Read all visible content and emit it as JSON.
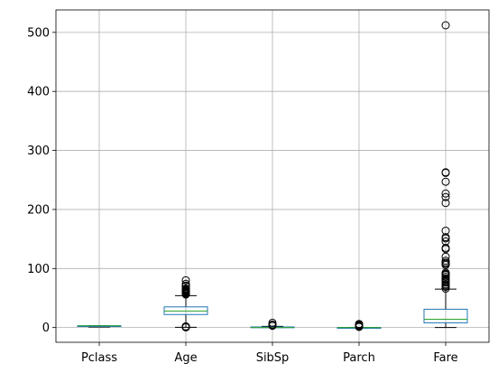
{
  "chart_data": {
    "type": "box",
    "categories": [
      "Pclass",
      "Age",
      "SibSp",
      "Parch",
      "Fare"
    ],
    "ylim": [
      -25,
      538
    ],
    "yticks": [
      0,
      100,
      200,
      300,
      400,
      500
    ],
    "ytick_labels": [
      "0",
      "100",
      "200",
      "300",
      "400",
      "500"
    ],
    "grid": true,
    "colors": {
      "box": "#1f77b4",
      "median": "#2ca02c",
      "whisker": "#000000",
      "flier": "#000000",
      "grid": "#b0b0b0"
    },
    "boxes": [
      {
        "name": "Pclass",
        "whisker_low": 1,
        "q1": 2,
        "median": 3,
        "q3": 3,
        "whisker_high": 3,
        "fliers": []
      },
      {
        "name": "Age",
        "whisker_low": 0.4,
        "q1": 22,
        "median": 28,
        "q3": 35,
        "whisker_high": 54,
        "fliers": [
          0.4,
          0.7,
          0.9,
          1,
          2,
          56,
          57,
          58,
          59,
          60,
          61,
          62,
          63,
          64,
          65,
          66,
          70,
          71,
          74,
          80
        ]
      },
      {
        "name": "SibSp",
        "whisker_low": 0,
        "q1": 0,
        "median": 0,
        "q3": 1,
        "whisker_high": 2,
        "fliers": [
          3,
          4,
          5,
          8
        ]
      },
      {
        "name": "Parch",
        "whisker_low": 0,
        "q1": 0,
        "median": 0,
        "q3": 0,
        "whisker_high": 0,
        "fliers": [
          1,
          2,
          3,
          4,
          5,
          6
        ]
      },
      {
        "name": "Fare",
        "whisker_low": 0,
        "q1": 8,
        "median": 14,
        "q3": 31,
        "whisker_high": 65,
        "fliers": [
          66,
          69,
          71,
          73,
          76,
          78,
          80,
          82,
          83,
          86,
          89,
          90,
          91,
          93,
          106,
          108,
          110,
          113,
          120,
          133,
          135,
          146,
          151,
          153,
          164,
          211,
          221,
          227,
          247,
          262,
          263,
          512
        ]
      }
    ]
  }
}
